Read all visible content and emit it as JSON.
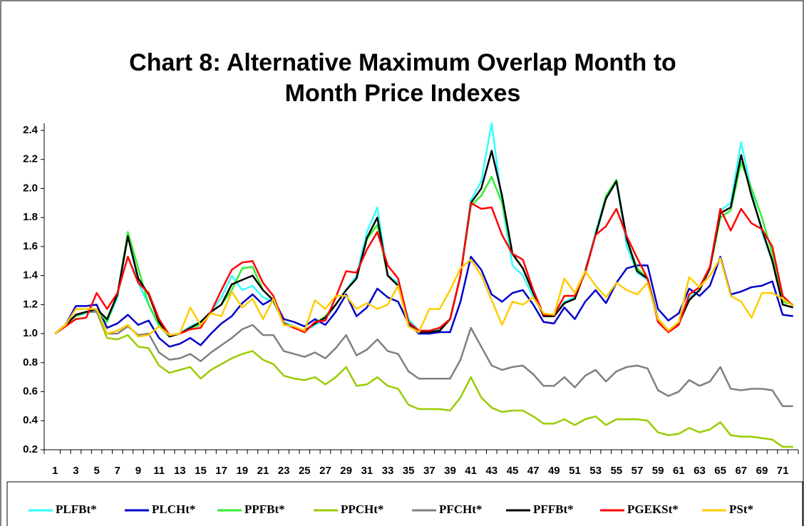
{
  "chart_data": {
    "type": "line",
    "title": [
      "Chart 8: Alternative Maximum Overlap Month to",
      "Month Price Indexes"
    ],
    "categories": [
      1,
      null,
      3,
      null,
      5,
      null,
      7,
      null,
      9,
      null,
      11,
      null,
      13,
      null,
      15,
      null,
      17,
      null,
      19,
      null,
      21,
      null,
      23,
      null,
      25,
      null,
      27,
      null,
      29,
      null,
      31,
      null,
      33,
      null,
      35,
      null,
      37,
      null,
      39,
      null,
      41,
      null,
      43,
      null,
      45,
      null,
      47,
      null,
      49,
      null,
      51,
      null,
      53,
      null,
      55,
      null,
      57,
      null,
      59,
      null,
      61,
      null,
      63,
      null,
      65,
      null,
      67,
      null,
      69,
      null,
      71,
      null
    ],
    "ylim": [
      0.2,
      2.4
    ],
    "yticks": [
      0.2,
      0.4,
      0.6,
      0.8,
      {
        "value": 1.0,
        "label": "1.0"
      },
      1.2,
      1.4,
      1.6,
      1.8,
      {
        "value": 2.0,
        "label": "2.0"
      },
      2.2,
      2.4
    ],
    "grid": false,
    "legend": "bottom",
    "series": [
      {
        "name": "PLFBt*",
        "color": "#33ffff",
        "values": [
          1.0,
          1.06,
          1.12,
          1.14,
          1.16,
          1.08,
          1.25,
          1.68,
          1.35,
          1.2,
          1.05,
          0.98,
          1.0,
          1.05,
          1.08,
          1.15,
          1.25,
          1.4,
          1.3,
          1.33,
          1.25,
          1.22,
          1.08,
          1.05,
          1.02,
          1.06,
          1.1,
          1.2,
          1.3,
          1.4,
          1.7,
          1.87,
          1.4,
          1.35,
          1.1,
          1.02,
          1.02,
          1.03,
          1.1,
          1.4,
          1.92,
          2.05,
          2.45,
          1.9,
          1.47,
          1.4,
          1.25,
          1.13,
          1.12,
          1.22,
          1.25,
          1.42,
          1.7,
          1.95,
          2.05,
          1.6,
          1.42,
          1.37,
          1.1,
          1.02,
          1.07,
          1.25,
          1.3,
          1.45,
          1.85,
          1.9,
          2.32,
          1.98,
          1.7,
          1.5,
          1.2,
          1.18
        ]
      },
      {
        "name": "PLCHt*",
        "color": "#0000cc",
        "values": [
          1.0,
          1.06,
          1.19,
          1.19,
          1.2,
          1.04,
          1.07,
          1.13,
          1.06,
          1.09,
          0.97,
          0.91,
          0.93,
          0.97,
          0.92,
          1.0,
          1.07,
          1.12,
          1.21,
          1.27,
          1.2,
          1.24,
          1.1,
          1.08,
          1.05,
          1.1,
          1.06,
          1.15,
          1.27,
          1.12,
          1.18,
          1.31,
          1.25,
          1.22,
          1.07,
          1.0,
          1.0,
          1.01,
          1.01,
          1.22,
          1.53,
          1.44,
          1.27,
          1.22,
          1.28,
          1.3,
          1.2,
          1.08,
          1.07,
          1.18,
          1.1,
          1.22,
          1.3,
          1.21,
          1.35,
          1.45,
          1.47,
          1.47,
          1.17,
          1.09,
          1.14,
          1.31,
          1.26,
          1.33,
          1.53,
          1.27,
          1.29,
          1.32,
          1.33,
          1.36,
          1.13,
          1.12
        ]
      },
      {
        "name": "PPFBt*",
        "color": "#33ee33",
        "values": [
          1.0,
          1.06,
          1.12,
          1.15,
          1.17,
          1.08,
          1.27,
          1.7,
          1.45,
          1.2,
          1.06,
          0.98,
          1.0,
          1.04,
          1.06,
          1.15,
          1.2,
          1.3,
          1.45,
          1.46,
          1.3,
          1.23,
          1.07,
          1.04,
          1.02,
          1.07,
          1.12,
          1.2,
          1.3,
          1.38,
          1.65,
          1.75,
          1.4,
          1.33,
          1.08,
          1.01,
          1.01,
          1.02,
          1.1,
          1.4,
          1.88,
          1.95,
          2.08,
          1.9,
          1.55,
          1.45,
          1.28,
          1.12,
          1.12,
          1.21,
          1.24,
          1.43,
          1.68,
          1.95,
          2.06,
          1.65,
          1.45,
          1.38,
          1.1,
          1.02,
          1.07,
          1.23,
          1.3,
          1.45,
          1.8,
          1.85,
          2.18,
          2.0,
          1.8,
          1.55,
          1.22,
          1.2
        ]
      },
      {
        "name": "PPCHt*",
        "color": "#99cc00",
        "values": [
          1.0,
          1.05,
          1.13,
          1.15,
          1.15,
          0.97,
          0.96,
          0.99,
          0.91,
          0.9,
          0.78,
          0.73,
          0.75,
          0.77,
          0.69,
          0.75,
          0.79,
          0.83,
          0.86,
          0.88,
          0.82,
          0.79,
          0.71,
          0.69,
          0.68,
          0.7,
          0.65,
          0.7,
          0.77,
          0.64,
          0.65,
          0.7,
          0.64,
          0.62,
          0.51,
          0.48,
          0.48,
          0.48,
          0.47,
          0.56,
          0.7,
          0.56,
          0.49,
          0.46,
          0.47,
          0.47,
          0.43,
          0.38,
          0.38,
          0.41,
          0.37,
          0.41,
          0.43,
          0.37,
          0.41,
          0.41,
          0.41,
          0.4,
          0.32,
          0.3,
          0.31,
          0.35,
          0.32,
          0.34,
          0.39,
          0.3,
          0.29,
          0.29,
          0.28,
          0.27,
          0.22,
          0.22
        ]
      },
      {
        "name": "PFCHt*",
        "color": "#808080",
        "values": [
          1.0,
          1.05,
          1.13,
          1.15,
          1.15,
          1.0,
          1.0,
          1.05,
          0.99,
          1.0,
          0.87,
          0.82,
          0.83,
          0.86,
          0.81,
          0.87,
          0.92,
          0.97,
          1.03,
          1.06,
          0.99,
          0.99,
          0.88,
          0.86,
          0.84,
          0.87,
          0.83,
          0.9,
          0.99,
          0.85,
          0.89,
          0.96,
          0.88,
          0.86,
          0.74,
          0.69,
          0.69,
          0.69,
          0.69,
          0.82,
          1.04,
          0.91,
          0.78,
          0.75,
          0.77,
          0.78,
          0.72,
          0.64,
          0.64,
          0.7,
          0.63,
          0.71,
          0.75,
          0.67,
          0.74,
          0.77,
          0.78,
          0.76,
          0.61,
          0.57,
          0.6,
          0.68,
          0.64,
          0.67,
          0.77,
          0.62,
          0.61,
          0.62,
          0.62,
          0.61,
          0.5,
          0.5
        ]
      },
      {
        "name": "PFFBt*",
        "color": "#000000",
        "values": [
          1.0,
          1.06,
          1.13,
          1.15,
          1.17,
          1.1,
          1.27,
          1.67,
          1.38,
          1.27,
          1.08,
          0.98,
          1.0,
          1.04,
          1.08,
          1.15,
          1.2,
          1.34,
          1.37,
          1.4,
          1.3,
          1.23,
          1.07,
          1.04,
          1.02,
          1.07,
          1.11,
          1.2,
          1.3,
          1.38,
          1.66,
          1.8,
          1.4,
          1.33,
          1.08,
          1.01,
          1.01,
          1.02,
          1.1,
          1.4,
          1.9,
          2.0,
          2.26,
          1.95,
          1.55,
          1.45,
          1.28,
          1.12,
          1.12,
          1.21,
          1.24,
          1.43,
          1.68,
          1.93,
          2.05,
          1.65,
          1.43,
          1.38,
          1.1,
          1.02,
          1.07,
          1.23,
          1.3,
          1.45,
          1.83,
          1.87,
          2.23,
          1.95,
          1.72,
          1.5,
          1.2,
          1.18
        ]
      },
      {
        "name": "PGEKSt*",
        "color": "#ff0000",
        "values": [
          1.0,
          1.05,
          1.1,
          1.11,
          1.28,
          1.17,
          1.28,
          1.53,
          1.35,
          1.28,
          1.1,
          0.99,
          1.0,
          1.03,
          1.04,
          1.15,
          1.3,
          1.44,
          1.49,
          1.5,
          1.35,
          1.26,
          1.07,
          1.04,
          1.01,
          1.08,
          1.09,
          1.25,
          1.43,
          1.42,
          1.58,
          1.7,
          1.47,
          1.38,
          1.08,
          1.02,
          1.02,
          1.04,
          1.1,
          1.4,
          1.9,
          1.86,
          1.87,
          1.68,
          1.55,
          1.51,
          1.3,
          1.13,
          1.13,
          1.26,
          1.26,
          1.42,
          1.68,
          1.74,
          1.86,
          1.67,
          1.52,
          1.38,
          1.08,
          1.01,
          1.06,
          1.27,
          1.32,
          1.46,
          1.86,
          1.71,
          1.86,
          1.76,
          1.72,
          1.6,
          1.26,
          1.19
        ]
      },
      {
        "name": "PSt*",
        "color": "#ffcc00",
        "values": [
          1.0,
          1.06,
          1.17,
          1.17,
          1.17,
          1.0,
          1.02,
          1.06,
          0.98,
          0.99,
          1.05,
          0.99,
          1.0,
          1.18,
          1.06,
          1.14,
          1.12,
          1.29,
          1.18,
          1.24,
          1.1,
          1.24,
          1.06,
          1.05,
          1.02,
          1.23,
          1.17,
          1.26,
          1.26,
          1.17,
          1.21,
          1.17,
          1.2,
          1.33,
          1.05,
          1.01,
          1.17,
          1.17,
          1.3,
          1.45,
          1.51,
          1.4,
          1.23,
          1.06,
          1.22,
          1.2,
          1.25,
          1.14,
          1.13,
          1.38,
          1.28,
          1.43,
          1.33,
          1.25,
          1.35,
          1.3,
          1.27,
          1.35,
          1.1,
          1.02,
          1.08,
          1.39,
          1.32,
          1.4,
          1.52,
          1.26,
          1.22,
          1.11,
          1.28,
          1.28,
          1.24,
          1.19
        ]
      }
    ]
  }
}
